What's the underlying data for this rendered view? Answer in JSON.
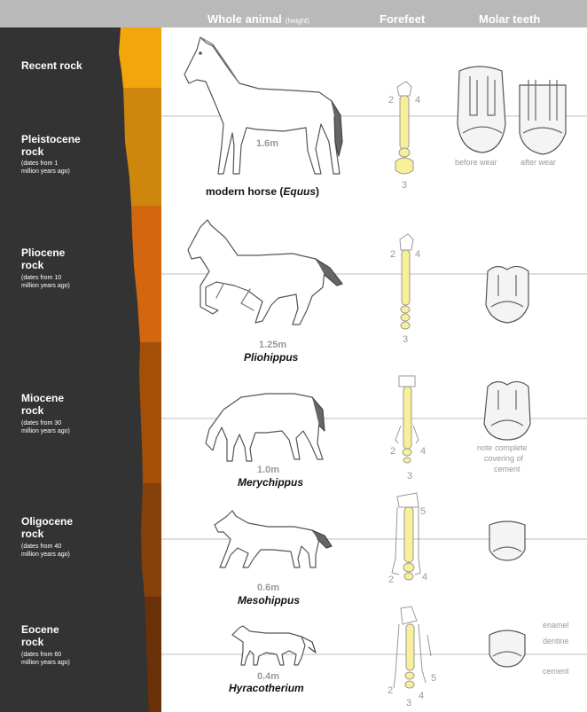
{
  "header": {
    "whole_animal": "Whole animal",
    "height_note": "(height)",
    "forefeet": "Forefeet",
    "molar_teeth": "Molar teeth"
  },
  "colors": {
    "header_bg": "#b9b9b9",
    "rock_dark": "#333333",
    "bone": "#f7ef99",
    "guide_line": "#bdbdbd",
    "strata": [
      "#f2a60c",
      "#cd870d",
      "#d26710",
      "#a34f08",
      "#86400a",
      "#6a3008"
    ]
  },
  "rows": [
    {
      "rock": "Recent rock",
      "dates": ""
    },
    {
      "rock_line1": "Pleistocene",
      "rock_line2": "rock",
      "dates_line1": "(dates from 1",
      "dates_line2": "million years ago)",
      "height": "1.6m",
      "name_prefix": "modern horse (",
      "name_genus": "Equus",
      "name_suffix": ")",
      "toe_left": "2",
      "toe_right": "4",
      "toe_bottom": "3",
      "tooth_caption_1": "before wear",
      "tooth_caption_2": "after wear"
    },
    {
      "rock_line1": "Pliocene",
      "rock_line2": "rock",
      "dates_line1": "(dates from 10",
      "dates_line2": "million years ago)",
      "height": "1.25m",
      "name": "Pliohippus",
      "toe_left": "2",
      "toe_right": "4",
      "toe_bottom": "3"
    },
    {
      "rock_line1": "Miocene",
      "rock_line2": "rock",
      "dates_line1": "(dates from 30",
      "dates_line2": "million years ago)",
      "height": "1.0m",
      "name": "Merychippus",
      "toe_left": "2",
      "toe_right": "4",
      "toe_bottom": "3",
      "tooth_note_1": "note complete",
      "tooth_note_2": "covering of",
      "tooth_note_3": "cement"
    },
    {
      "rock_line1": "Oligocene",
      "rock_line2": "rock",
      "dates_line1": "(dates from 40",
      "dates_line2": "million years ago)",
      "height": "0.6m",
      "name": "Mesohippus",
      "toe_left": "2",
      "toe_right": "4",
      "toe_top": "5"
    },
    {
      "rock_line1": "Eocene",
      "rock_line2": "rock",
      "dates_line1": "(dates from 60",
      "dates_line2": "million years ago)",
      "height": "0.4m",
      "name": "Hyracotherium",
      "toe_left": "2",
      "toe_right": "4",
      "toe_bottom": "3",
      "toe_extra": "5",
      "tooth_label_1": "enamel",
      "tooth_label_2": "dentine",
      "tooth_label_3": "cement"
    }
  ]
}
